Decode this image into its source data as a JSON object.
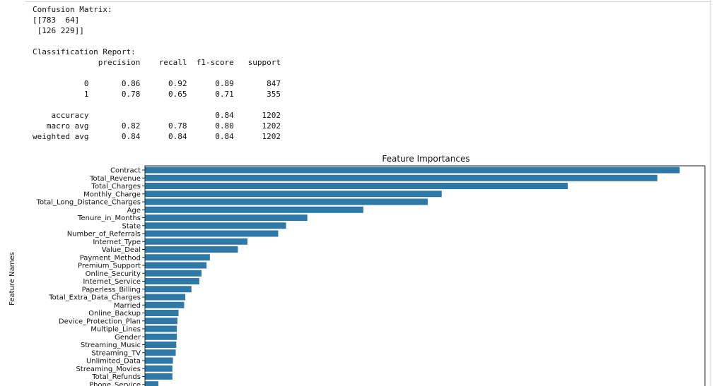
{
  "output": {
    "confusion_matrix_title": "Confusion Matrix:",
    "confusion_matrix_rows": [
      "[[783  64]",
      " [126 229]]"
    ],
    "classification_report_title": "Classification Report:",
    "report_header": "              precision    recall  f1-score   support",
    "report_rows": [
      "           0       0.86      0.92      0.89       847",
      "           1       0.78      0.65      0.71       355",
      "",
      "    accuracy                           0.84      1202",
      "   macro avg       0.82      0.78      0.80      1202",
      "weighted avg       0.84      0.84      0.84      1202"
    ]
  },
  "chart_data": {
    "type": "bar",
    "orientation": "horizontal",
    "title": "Feature Importances",
    "xlabel": "",
    "ylabel": "Feature Names",
    "bar_color": "#2e79a8",
    "grid": false,
    "xlim": [
      0,
      0.1
    ],
    "categories": [
      "Contract",
      "Total_Revenue",
      "Total_Charges",
      "Monthly_Charge",
      "Total_Long_Distance_Charges",
      "Age",
      "Tenure_in_Months",
      "State",
      "Number_of_Referrals",
      "Internet_Type",
      "Value_Deal",
      "Payment_Method",
      "Premium_Support",
      "Online_Security",
      "Internet_Service",
      "Paperless_Billing",
      "Total_Extra_Data_Charges",
      "Married",
      "Online_Backup",
      "Device_Protection_Plan",
      "Multiple_Lines",
      "Gender",
      "Streaming_Music",
      "Streaming_TV",
      "Unlimited_Data",
      "Streaming_Movies",
      "Total_Refunds",
      "Phone_Service"
    ],
    "values": [
      0.0955,
      0.0915,
      0.0755,
      0.053,
      0.0505,
      0.039,
      0.029,
      0.0252,
      0.0238,
      0.0183,
      0.0166,
      0.0116,
      0.011,
      0.0101,
      0.0097,
      0.0083,
      0.0072,
      0.007,
      0.006,
      0.0058,
      0.0057,
      0.0057,
      0.0056,
      0.0055,
      0.005,
      0.0049,
      0.0049,
      0.0024
    ]
  }
}
